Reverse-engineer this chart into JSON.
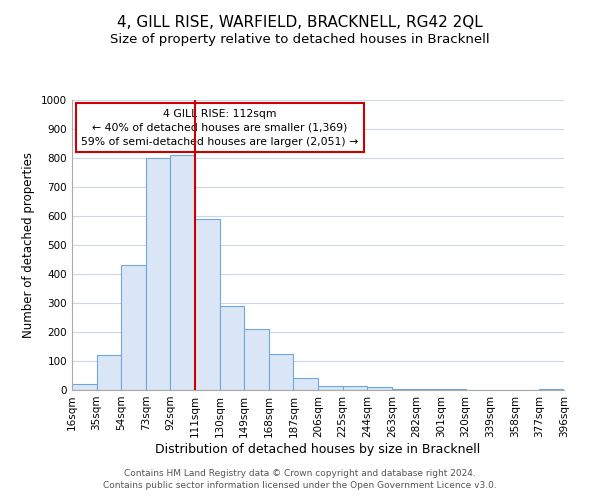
{
  "title": "4, GILL RISE, WARFIELD, BRACKNELL, RG42 2QL",
  "subtitle": "Size of property relative to detached houses in Bracknell",
  "xlabel": "Distribution of detached houses by size in Bracknell",
  "ylabel": "Number of detached properties",
  "bar_edges": [
    16,
    35,
    54,
    73,
    92,
    111,
    130,
    149,
    168,
    187,
    206,
    225,
    244,
    263,
    282,
    301,
    320,
    339,
    358,
    377,
    396
  ],
  "bar_heights": [
    20,
    120,
    430,
    800,
    810,
    590,
    290,
    210,
    125,
    40,
    15,
    15,
    10,
    5,
    3,
    2,
    1,
    1,
    1,
    5
  ],
  "bar_color": "#dae6f5",
  "bar_edgecolor": "#6fa8dc",
  "vline_x": 111,
  "vline_color": "#cc0000",
  "ylim": [
    0,
    1000
  ],
  "yticks": [
    0,
    100,
    200,
    300,
    400,
    500,
    600,
    700,
    800,
    900,
    1000
  ],
  "xtick_labels": [
    "16sqm",
    "35sqm",
    "54sqm",
    "73sqm",
    "92sqm",
    "111sqm",
    "130sqm",
    "149sqm",
    "168sqm",
    "187sqm",
    "206sqm",
    "225sqm",
    "244sqm",
    "263sqm",
    "282sqm",
    "301sqm",
    "320sqm",
    "339sqm",
    "358sqm",
    "377sqm",
    "396sqm"
  ],
  "annotation_title": "4 GILL RISE: 112sqm",
  "annotation_line1": "← 40% of detached houses are smaller (1,369)",
  "annotation_line2": "59% of semi-detached houses are larger (2,051) →",
  "annotation_box_color": "#ffffff",
  "annotation_box_edgecolor": "#cc0000",
  "footer1": "Contains HM Land Registry data © Crown copyright and database right 2024.",
  "footer2": "Contains public sector information licensed under the Open Government Licence v3.0.",
  "background_color": "#ffffff",
  "grid_color": "#ccd8e8",
  "title_fontsize": 11,
  "subtitle_fontsize": 9.5,
  "xlabel_fontsize": 9,
  "ylabel_fontsize": 8.5,
  "tick_fontsize": 7.5,
  "footer_fontsize": 6.5,
  "ann_fontsize": 7.8
}
